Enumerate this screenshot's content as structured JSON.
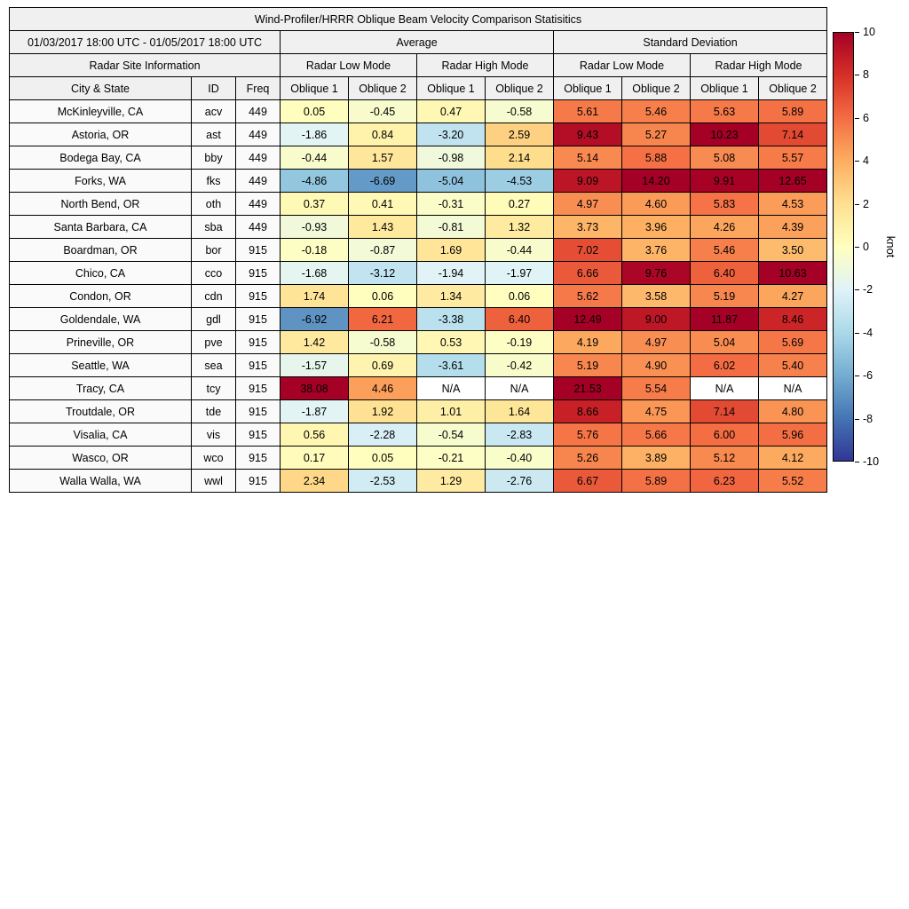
{
  "figure": {
    "title": "Wind-Profiler/HRRR Oblique Beam Velocity Comparison Statisitics",
    "period": "01/03/2017 18:00 UTC - 01/05/2017 18:00 UTC"
  },
  "headers": {
    "average": "Average",
    "standard_deviation": "Standard Deviation",
    "site_info": "Radar Site Information",
    "low_mode": "Radar Low Mode",
    "high_mode": "Radar High Mode",
    "columns": [
      "City & State",
      "ID",
      "Freq",
      "Oblique 1",
      "Oblique 2",
      "Oblique 1",
      "Oblique 2",
      "Oblique 1",
      "Oblique 2",
      "Oblique 1",
      "Oblique 2"
    ]
  },
  "colorbar": {
    "label": "knot",
    "min": -10,
    "max": 10,
    "ticks": [
      "10",
      "8",
      "6",
      "4",
      "2",
      "0",
      "-2",
      "-4",
      "-6",
      "-8",
      "-10"
    ],
    "colormap": [
      "#313695",
      "#4575b4",
      "#74add1",
      "#abd9e9",
      "#e0f3f8",
      "#ffffbf",
      "#fee090",
      "#fdae61",
      "#f46d43",
      "#d73027",
      "#a50026"
    ],
    "na_color": "#ffffff"
  },
  "chart_data": {
    "type": "heatmap",
    "title": "Wind-Profiler/HRRR Oblique Beam Velocity Comparison Statisitics",
    "period": "01/03/2017 18:00 UTC - 01/05/2017 18:00 UTC",
    "unit": "knot",
    "color_range": [
      -10,
      10
    ],
    "value_columns": [
      "Average Radar Low Mode Oblique 1",
      "Average Radar Low Mode Oblique 2",
      "Average Radar High Mode Oblique 1",
      "Average Radar High Mode Oblique 2",
      "Standard Deviation Radar Low Mode Oblique 1",
      "Standard Deviation Radar Low Mode Oblique 2",
      "Standard Deviation Radar High Mode Oblique 1",
      "Standard Deviation Radar High Mode Oblique 2"
    ],
    "rows": [
      {
        "city_state": "McKinleyville, CA",
        "id": "acv",
        "freq": "449",
        "values": [
          "0.05",
          "-0.45",
          "0.47",
          "-0.58",
          "5.61",
          "5.46",
          "5.63",
          "5.89"
        ]
      },
      {
        "city_state": "Astoria, OR",
        "id": "ast",
        "freq": "449",
        "values": [
          "-1.86",
          "0.84",
          "-3.20",
          "2.59",
          "9.43",
          "5.27",
          "10.23",
          "7.14"
        ]
      },
      {
        "city_state": "Bodega Bay, CA",
        "id": "bby",
        "freq": "449",
        "values": [
          "-0.44",
          "1.57",
          "-0.98",
          "2.14",
          "5.14",
          "5.88",
          "5.08",
          "5.57"
        ]
      },
      {
        "city_state": "Forks, WA",
        "id": "fks",
        "freq": "449",
        "values": [
          "-4.86",
          "-6.69",
          "-5.04",
          "-4.53",
          "9.09",
          "14.20",
          "9.91",
          "12.65"
        ]
      },
      {
        "city_state": "North Bend, OR",
        "id": "oth",
        "freq": "449",
        "values": [
          "0.37",
          "0.41",
          "-0.31",
          "0.27",
          "4.97",
          "4.60",
          "5.83",
          "4.53"
        ]
      },
      {
        "city_state": "Santa Barbara, CA",
        "id": "sba",
        "freq": "449",
        "values": [
          "-0.93",
          "1.43",
          "-0.81",
          "1.32",
          "3.73",
          "3.96",
          "4.26",
          "4.39"
        ]
      },
      {
        "city_state": "Boardman, OR",
        "id": "bor",
        "freq": "915",
        "values": [
          "-0.18",
          "-0.87",
          "1.69",
          "-0.44",
          "7.02",
          "3.76",
          "5.46",
          "3.50"
        ]
      },
      {
        "city_state": "Chico, CA",
        "id": "cco",
        "freq": "915",
        "values": [
          "-1.68",
          "-3.12",
          "-1.94",
          "-1.97",
          "6.66",
          "9.76",
          "6.40",
          "10.63"
        ]
      },
      {
        "city_state": "Condon, OR",
        "id": "cdn",
        "freq": "915",
        "values": [
          "1.74",
          "0.06",
          "1.34",
          "0.06",
          "5.62",
          "3.58",
          "5.19",
          "4.27"
        ]
      },
      {
        "city_state": "Goldendale, WA",
        "id": "gdl",
        "freq": "915",
        "values": [
          "-6.92",
          "6.21",
          "-3.38",
          "6.40",
          "12.49",
          "9.00",
          "11.87",
          "8.46"
        ]
      },
      {
        "city_state": "Prineville, OR",
        "id": "pve",
        "freq": "915",
        "values": [
          "1.42",
          "-0.58",
          "0.53",
          "-0.19",
          "4.19",
          "4.97",
          "5.04",
          "5.69"
        ]
      },
      {
        "city_state": "Seattle, WA",
        "id": "sea",
        "freq": "915",
        "values": [
          "-1.57",
          "0.69",
          "-3.61",
          "-0.42",
          "5.19",
          "4.90",
          "6.02",
          "5.40"
        ]
      },
      {
        "city_state": "Tracy, CA",
        "id": "tcy",
        "freq": "915",
        "values": [
          "38.08",
          "4.46",
          "N/A",
          "N/A",
          "21.53",
          "5.54",
          "N/A",
          "N/A"
        ]
      },
      {
        "city_state": "Troutdale, OR",
        "id": "tde",
        "freq": "915",
        "values": [
          "-1.87",
          "1.92",
          "1.01",
          "1.64",
          "8.66",
          "4.75",
          "7.14",
          "4.80"
        ]
      },
      {
        "city_state": "Visalia, CA",
        "id": "vis",
        "freq": "915",
        "values": [
          "0.56",
          "-2.28",
          "-0.54",
          "-2.83",
          "5.76",
          "5.66",
          "6.00",
          "5.96"
        ]
      },
      {
        "city_state": "Wasco, OR",
        "id": "wco",
        "freq": "915",
        "values": [
          "0.17",
          "0.05",
          "-0.21",
          "-0.40",
          "5.26",
          "3.89",
          "5.12",
          "4.12"
        ]
      },
      {
        "city_state": "Walla Walla, WA",
        "id": "wwl",
        "freq": "915",
        "values": [
          "2.34",
          "-2.53",
          "1.29",
          "-2.76",
          "6.67",
          "5.89",
          "6.23",
          "5.52"
        ]
      }
    ]
  }
}
